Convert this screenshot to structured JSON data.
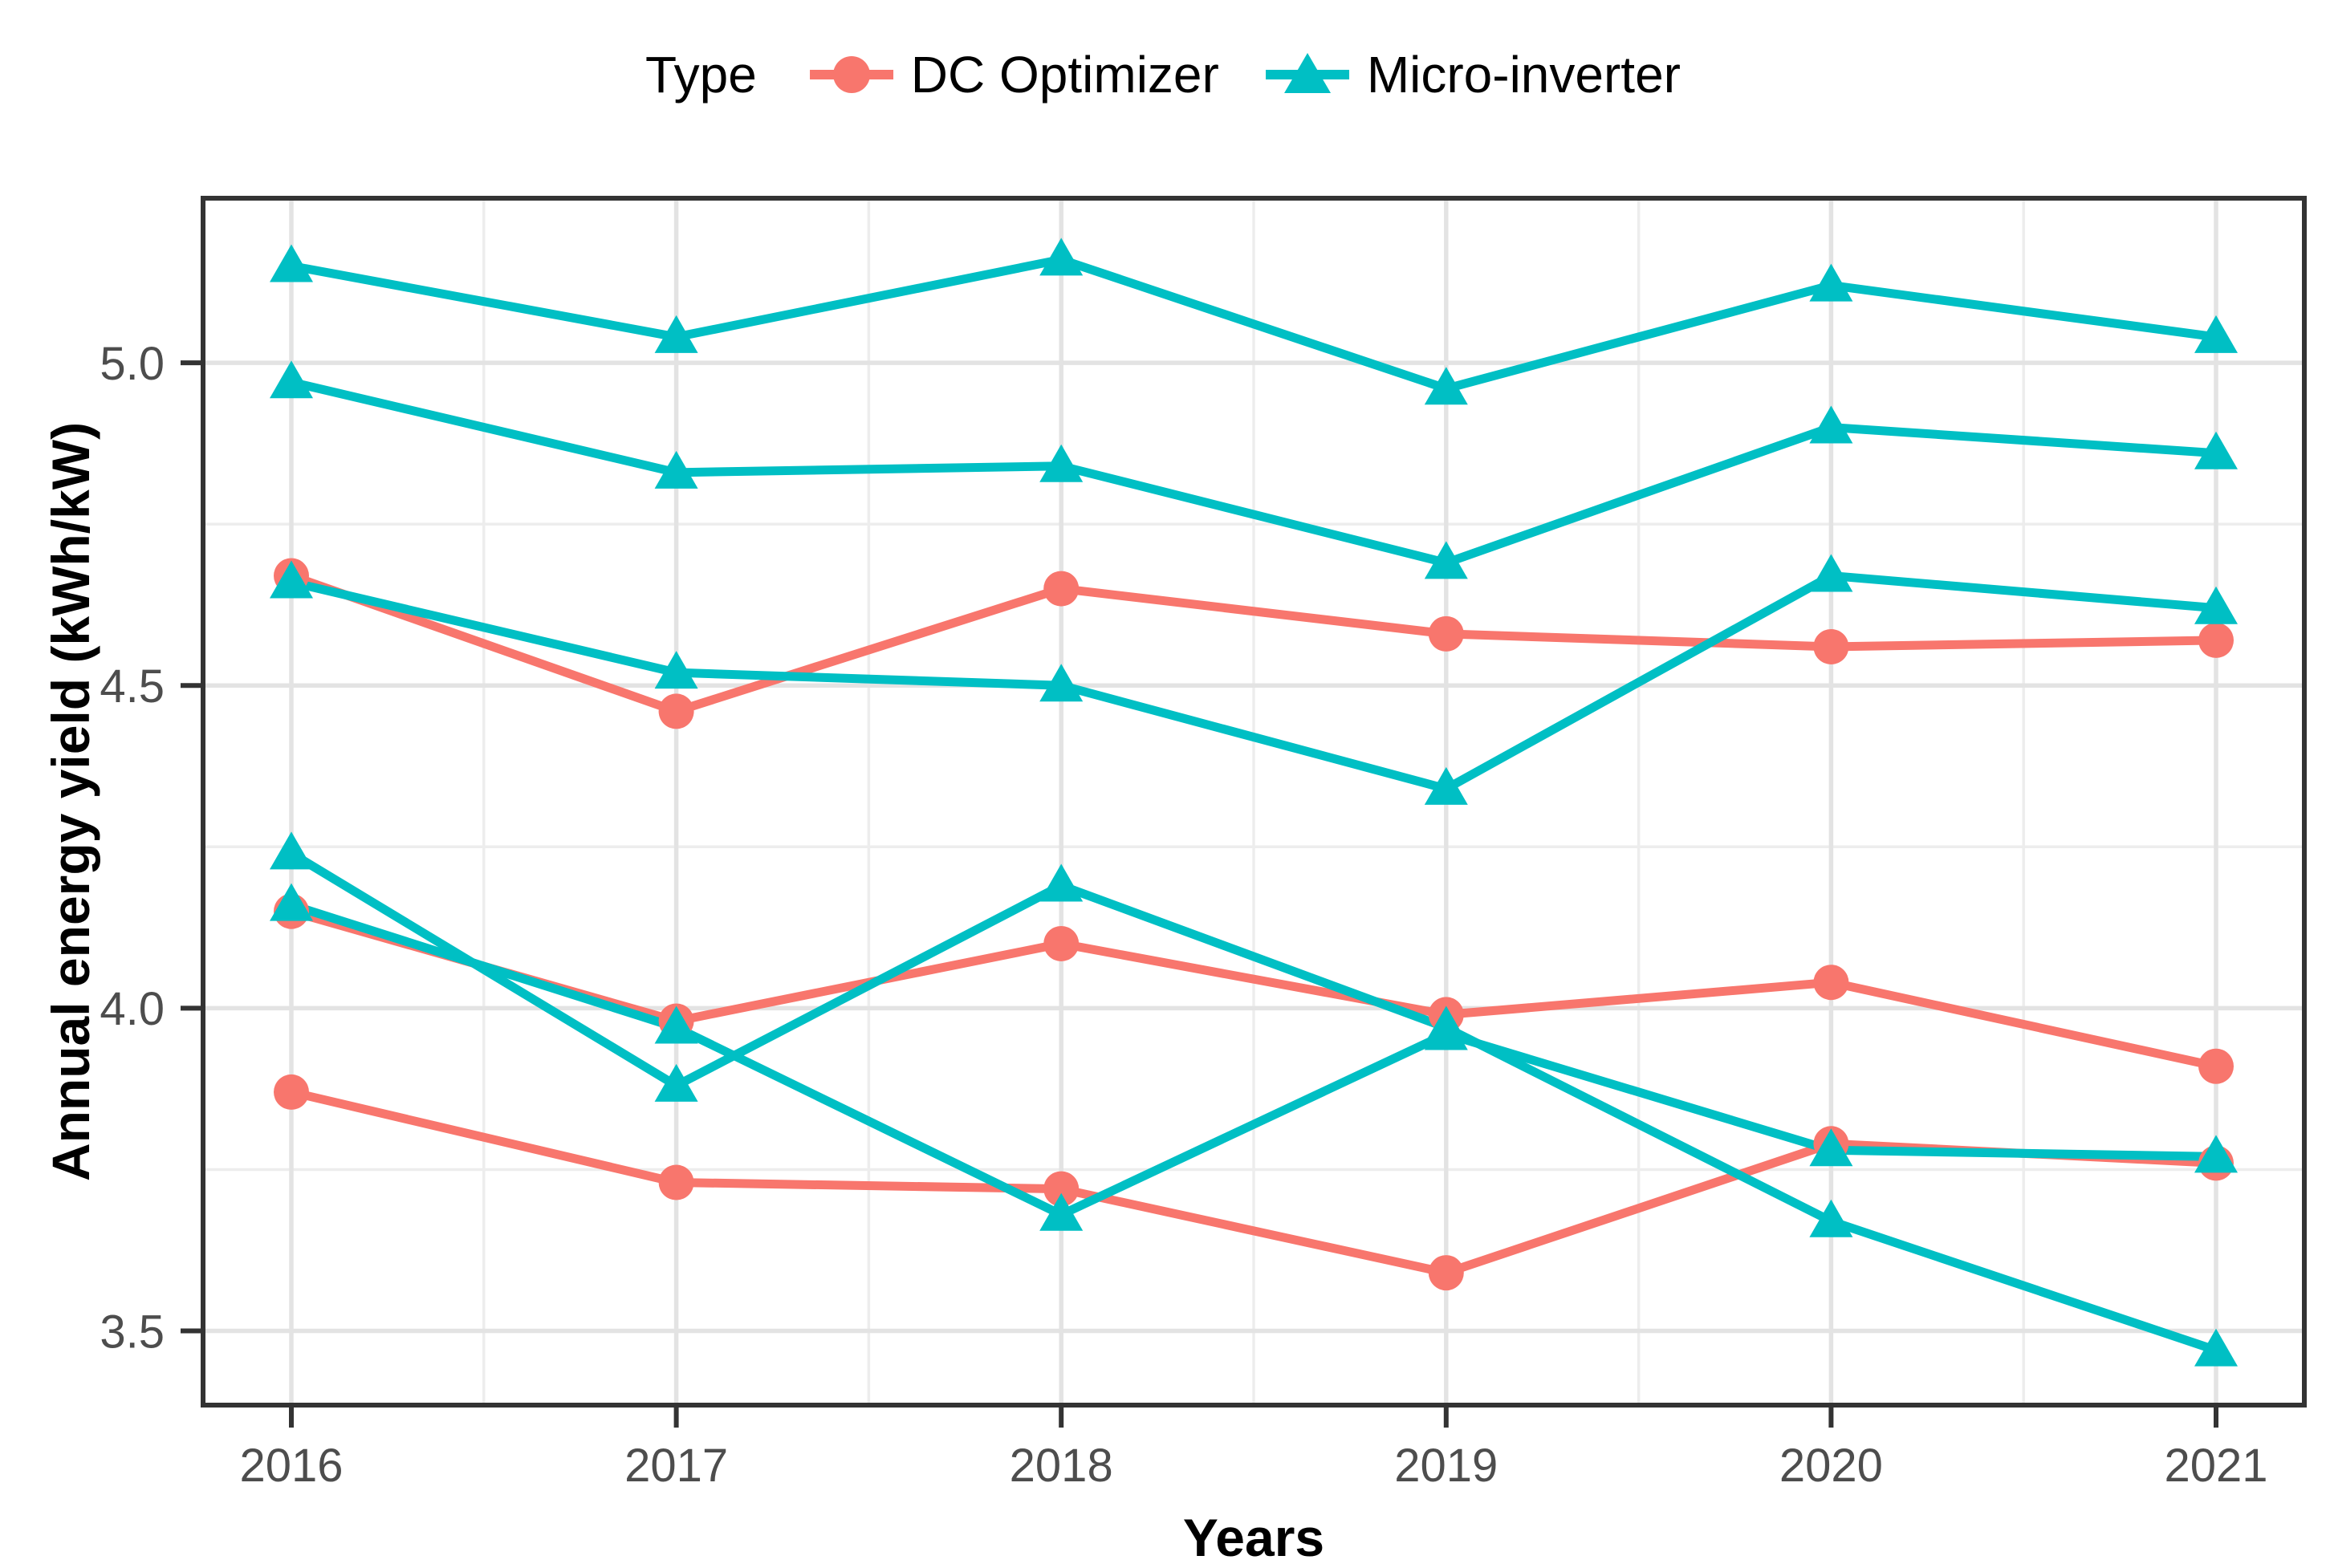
{
  "legend": {
    "title": "Type",
    "items": [
      {
        "label": "DC Optimizer",
        "color": "#F8766D",
        "marker": "circle"
      },
      {
        "label": "Micro-inverter",
        "color": "#00BFC4",
        "marker": "triangle"
      }
    ]
  },
  "axes": {
    "x_title": "Years",
    "y_title": "Annual energy yield (kWh/kW)"
  },
  "colors": {
    "dc_optimizer": "#F8766D",
    "micro_inverter": "#00BFC4",
    "grid_major": "#E3E3E3",
    "grid_minor": "#EDEDED",
    "panel_border": "#333333",
    "tick_mark": "#333333",
    "tick_label": "#4D4D4D",
    "background": "#FFFFFF"
  },
  "chart_data": {
    "type": "line",
    "title": "",
    "xlabel": "Years",
    "ylabel": "Annual energy yield (kWh/kW)",
    "x": [
      2016,
      2017,
      2018,
      2019,
      2020,
      2021
    ],
    "x_tick_labels": [
      "2016",
      "2017",
      "2018",
      "2019",
      "2020",
      "2021"
    ],
    "ylim": [
      3.385,
      5.255
    ],
    "yticks_major": [
      3.5,
      4.0,
      4.5,
      5.0
    ],
    "ytick_labels": [
      "3.5",
      "4.0",
      "4.5",
      "5.0"
    ],
    "yticks_minor": [
      3.75,
      4.25,
      4.75
    ],
    "grid": true,
    "legend_position": "top",
    "series": [
      {
        "name": "DC Optimizer 1",
        "type": "DC Optimizer",
        "marker": "circle",
        "values": [
          4.67,
          4.46,
          4.65,
          4.58,
          4.56,
          4.57
        ]
      },
      {
        "name": "DC Optimizer 2",
        "type": "DC Optimizer",
        "marker": "circle",
        "values": [
          4.15,
          3.98,
          4.1,
          3.99,
          4.04,
          3.91
        ]
      },
      {
        "name": "DC Optimizer 3",
        "type": "DC Optimizer",
        "marker": "circle",
        "values": [
          3.87,
          3.73,
          3.72,
          3.59,
          3.79,
          3.76
        ]
      },
      {
        "name": "Micro-inverter 1",
        "type": "Micro-inverter",
        "marker": "triangle",
        "values": [
          5.15,
          5.04,
          5.16,
          4.96,
          5.12,
          5.04
        ]
      },
      {
        "name": "Micro-inverter 2",
        "type": "Micro-inverter",
        "marker": "triangle",
        "values": [
          4.97,
          4.83,
          4.84,
          4.69,
          4.9,
          4.86
        ]
      },
      {
        "name": "Micro-inverter 3",
        "type": "Micro-inverter",
        "marker": "triangle",
        "values": [
          4.66,
          4.52,
          4.5,
          4.34,
          4.67,
          4.62
        ]
      },
      {
        "name": "Micro-inverter 4",
        "type": "Micro-inverter",
        "marker": "triangle",
        "values": [
          4.16,
          3.97,
          3.68,
          3.96,
          3.78,
          3.77
        ]
      },
      {
        "name": "Micro-inverter 5",
        "type": "Micro-inverter",
        "marker": "triangle",
        "values": [
          4.24,
          3.88,
          4.19,
          3.97,
          3.67,
          3.47
        ]
      }
    ]
  }
}
